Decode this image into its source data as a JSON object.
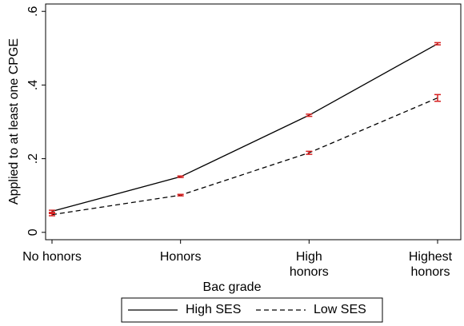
{
  "chart_data": {
    "type": "line",
    "x_label": "Bac grade",
    "y_label": "Applied to at least one CPGE",
    "categories": [
      "No honors",
      "Honors",
      "High honors",
      "Highest honors"
    ],
    "series": [
      {
        "name": "High SES",
        "color": "#000000",
        "dash": "solid",
        "values": [
          0.057,
          0.151,
          0.318,
          0.512
        ],
        "errors": [
          0.003,
          0.002,
          0.003,
          0.003
        ]
      },
      {
        "name": "Low SES",
        "color": "#000000",
        "dash": "dashed",
        "values": [
          0.048,
          0.101,
          0.216,
          0.365
        ],
        "errors": [
          0.003,
          0.002,
          0.004,
          0.009
        ]
      }
    ],
    "error_color": "#d62020",
    "ylim": [
      -0.02,
      0.62
    ],
    "yticks": [
      0,
      {
        "value": 0.2,
        "label": ".2"
      },
      {
        "value": 0.4,
        "label": ".4"
      },
      {
        "value": 0.6,
        "label": ".6"
      }
    ],
    "grid": false,
    "legend": "bottom"
  }
}
